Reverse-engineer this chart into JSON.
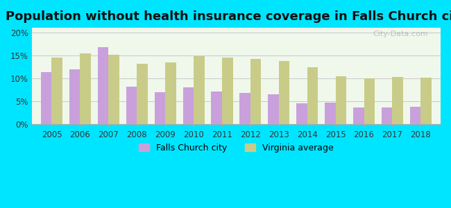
{
  "title": "Population without health insurance coverage in Falls Church city",
  "years": [
    2005,
    2006,
    2007,
    2008,
    2009,
    2010,
    2011,
    2012,
    2013,
    2014,
    2015,
    2016,
    2017,
    2018
  ],
  "falls_church": [
    11.3,
    12.0,
    16.8,
    8.2,
    7.0,
    8.0,
    7.1,
    6.9,
    6.6,
    4.6,
    4.8,
    3.7,
    3.7,
    3.9
  ],
  "virginia_avg": [
    14.5,
    15.5,
    15.1,
    13.2,
    13.5,
    14.9,
    14.5,
    14.2,
    13.8,
    12.4,
    10.5,
    10.0,
    10.3,
    10.1
  ],
  "falls_church_color": "#c9a0dc",
  "virginia_color": "#c8cc88",
  "background_outer": "#00e5ff",
  "background_inner": "#f0f8ec",
  "ylim": [
    0,
    21
  ],
  "yticks": [
    0,
    5,
    10,
    15,
    20
  ],
  "yticklabels": [
    "0%",
    "5%",
    "10%",
    "15%",
    "20%"
  ],
  "bar_width": 0.38,
  "title_fontsize": 13,
  "legend_label_city": "Falls Church city",
  "legend_label_va": "Virginia average",
  "watermark": "City-Data.com"
}
